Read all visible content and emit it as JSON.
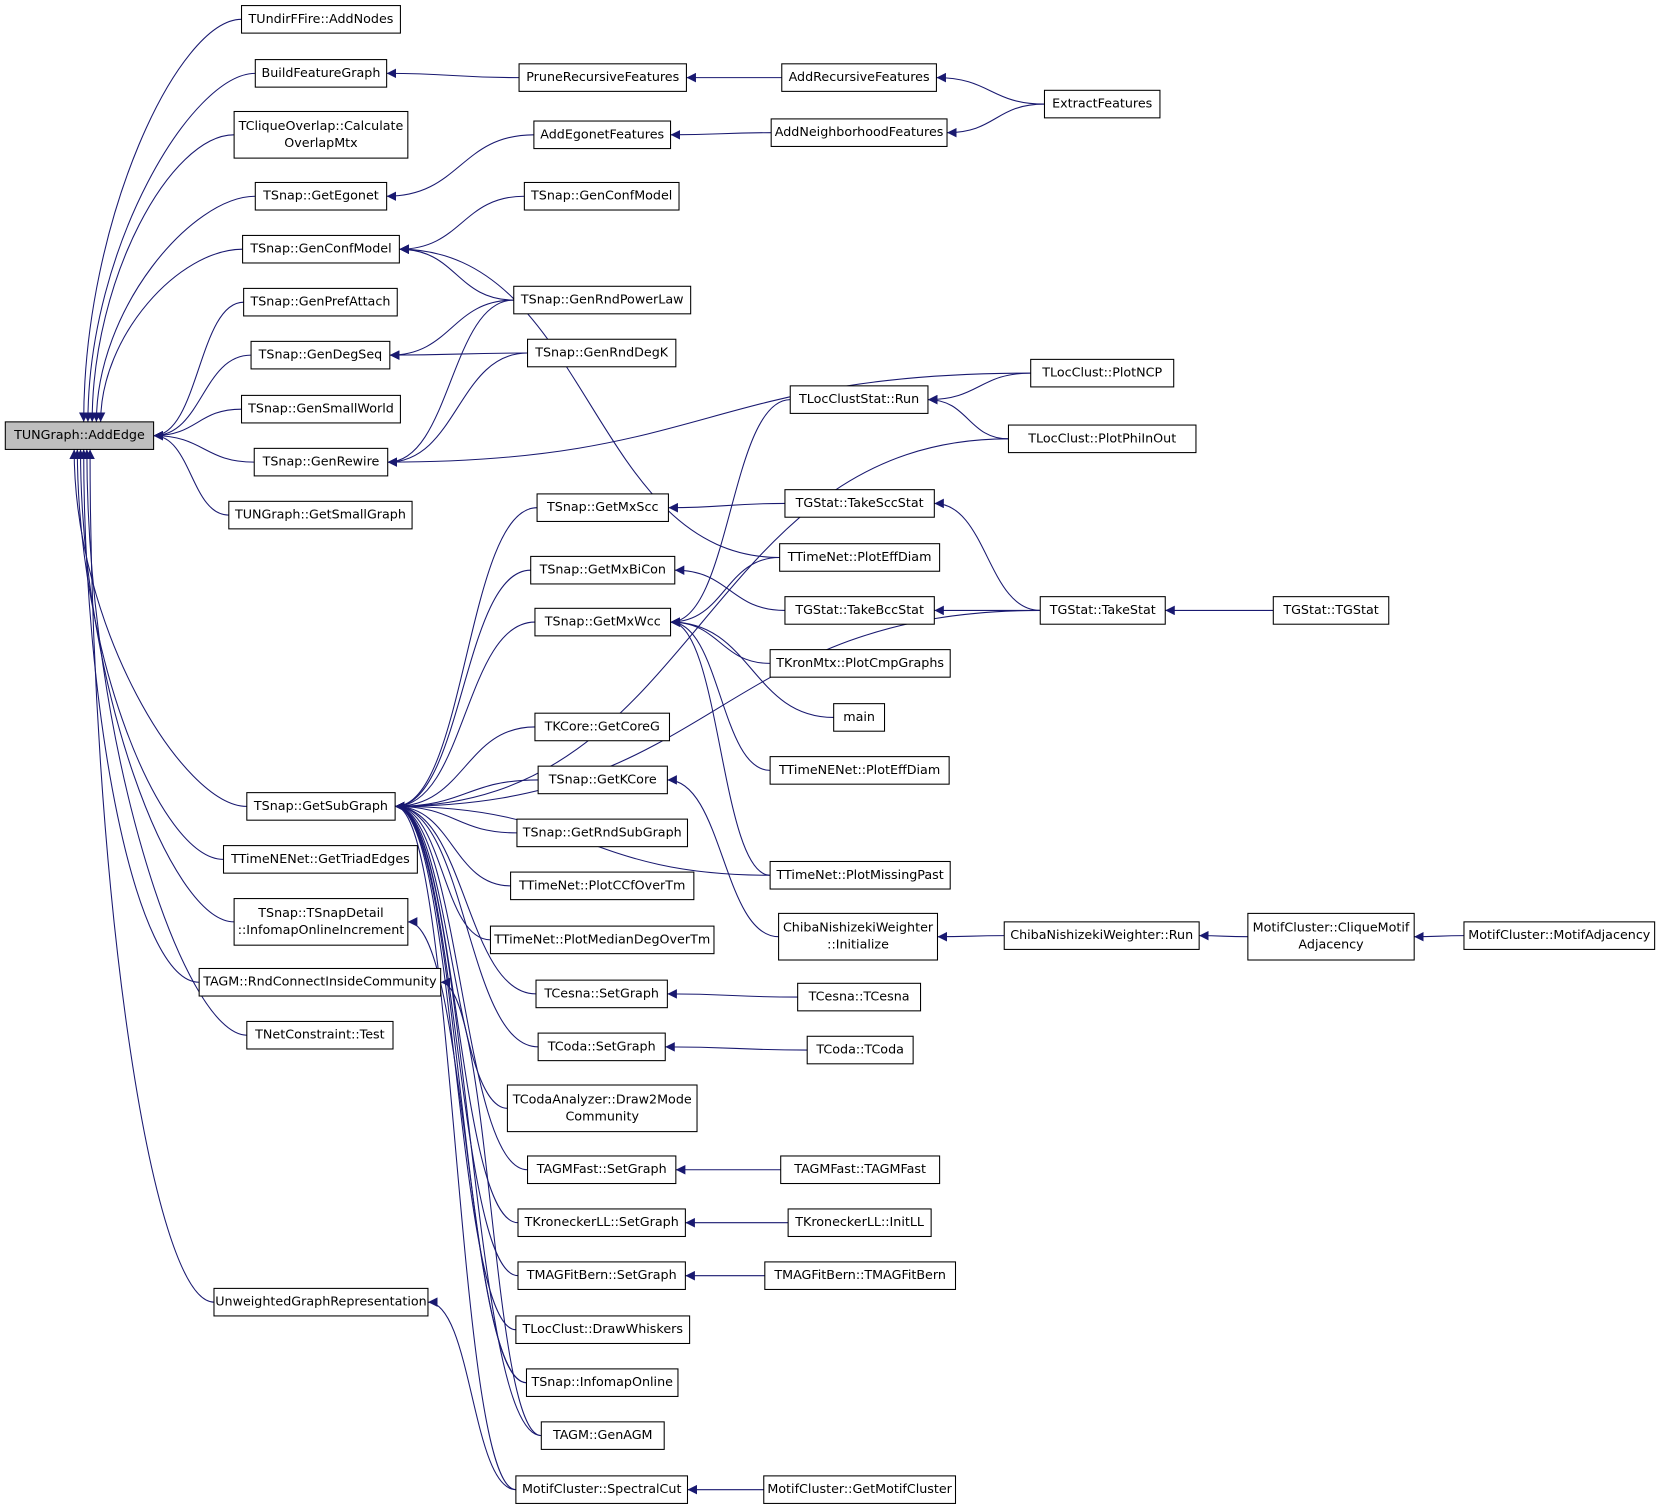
{
  "nodes": [
    {
      "lines": [
        "TUNGraph::AddEdge"
      ]
    },
    {
      "lines": [
        "TUndirFFire::AddNodes"
      ]
    },
    {
      "lines": [
        "BuildFeatureGraph"
      ]
    },
    {
      "lines": [
        "TCliqueOverlap::Calculate",
        "OverlapMtx"
      ]
    },
    {
      "lines": [
        "TSnap::GetEgonet"
      ]
    },
    {
      "lines": [
        "TSnap::GenConfModel"
      ]
    },
    {
      "lines": [
        "TSnap::GenPrefAttach"
      ]
    },
    {
      "lines": [
        "TSnap::GenDegSeq"
      ]
    },
    {
      "lines": [
        "TSnap::GenSmallWorld"
      ]
    },
    {
      "lines": [
        "TSnap::GenRewire"
      ]
    },
    {
      "lines": [
        "TUNGraph::GetSmallGraph"
      ]
    },
    {
      "lines": [
        "TSnap::GetSubGraph"
      ]
    },
    {
      "lines": [
        "TTimeNENet::GetTriadEdges"
      ]
    },
    {
      "lines": [
        "TSnap::TSnapDetail",
        "::InfomapOnlineIncrement"
      ]
    },
    {
      "lines": [
        "TAGM::RndConnectInsideCommunity"
      ]
    },
    {
      "lines": [
        "TNetConstraint::Test"
      ]
    },
    {
      "lines": [
        "UnweightedGraphRepresentation"
      ]
    },
    {
      "lines": [
        "PruneRecursiveFeatures"
      ]
    },
    {
      "lines": [
        "AddEgonetFeatures"
      ]
    },
    {
      "lines": [
        "TSnap::GenConfModel"
      ]
    },
    {
      "lines": [
        "TSnap::GenRndPowerLaw"
      ]
    },
    {
      "lines": [
        "TSnap::GenRndDegK"
      ]
    },
    {
      "lines": [
        "TSnap::GetMxScc"
      ]
    },
    {
      "lines": [
        "TSnap::GetMxBiCon"
      ]
    },
    {
      "lines": [
        "TSnap::GetMxWcc"
      ]
    },
    {
      "lines": [
        "TKCore::GetCoreG"
      ]
    },
    {
      "lines": [
        "TSnap::GetKCore"
      ]
    },
    {
      "lines": [
        "TSnap::GetRndSubGraph"
      ]
    },
    {
      "lines": [
        "TTimeNet::PlotCCfOverTm"
      ]
    },
    {
      "lines": [
        "TTimeNet::PlotMedianDegOverTm"
      ]
    },
    {
      "lines": [
        "TCesna::SetGraph"
      ]
    },
    {
      "lines": [
        "TCoda::SetGraph"
      ]
    },
    {
      "lines": [
        "TCodaAnalyzer::Draw2Mode",
        "Community"
      ]
    },
    {
      "lines": [
        "TAGMFast::SetGraph"
      ]
    },
    {
      "lines": [
        "TKroneckerLL::SetGraph"
      ]
    },
    {
      "lines": [
        "TMAGFitBern::SetGraph"
      ]
    },
    {
      "lines": [
        "TLocClust::DrawWhiskers"
      ]
    },
    {
      "lines": [
        "TSnap::InfomapOnline"
      ]
    },
    {
      "lines": [
        "TAGM::GenAGM"
      ]
    },
    {
      "lines": [
        "MotifCluster::SpectralCut"
      ]
    },
    {
      "lines": [
        "AddRecursiveFeatures"
      ]
    },
    {
      "lines": [
        "AddNeighborhoodFeatures"
      ]
    },
    {
      "lines": [
        "TLocClustStat::Run"
      ]
    },
    {
      "lines": [
        "TGStat::TakeSccStat"
      ]
    },
    {
      "lines": [
        "TTimeNet::PlotEffDiam"
      ]
    },
    {
      "lines": [
        "TGStat::TakeBccStat"
      ]
    },
    {
      "lines": [
        "TKronMtx::PlotCmpGraphs"
      ]
    },
    {
      "lines": [
        "main"
      ]
    },
    {
      "lines": [
        "TTimeNENet::PlotEffDiam"
      ]
    },
    {
      "lines": [
        "TTimeNet::PlotMissingPast"
      ]
    },
    {
      "lines": [
        "ChibaNishizekiWeighter",
        "::Initialize"
      ]
    },
    {
      "lines": [
        "TCesna::TCesna"
      ]
    },
    {
      "lines": [
        "TCoda::TCoda"
      ]
    },
    {
      "lines": [
        "TAGMFast::TAGMFast"
      ]
    },
    {
      "lines": [
        "TKroneckerLL::InitLL"
      ]
    },
    {
      "lines": [
        "TMAGFitBern::TMAGFitBern"
      ]
    },
    {
      "lines": [
        "MotifCluster::GetMotifCluster"
      ]
    },
    {
      "lines": [
        "ExtractFeatures"
      ]
    },
    {
      "lines": [
        "TLocClust::PlotNCP"
      ]
    },
    {
      "lines": [
        "TLocClust::PlotPhiInOut"
      ]
    },
    {
      "lines": [
        "TGStat::TakeStat"
      ]
    },
    {
      "lines": [
        "ChibaNishizekiWeighter::Run"
      ]
    },
    {
      "lines": [
        "TGStat::TGStat"
      ]
    },
    {
      "lines": [
        "MotifCluster::CliqueMotif",
        "Adjacency"
      ]
    },
    {
      "lines": [
        "MotifCluster::MotifAdjacency"
      ]
    }
  ]
}
